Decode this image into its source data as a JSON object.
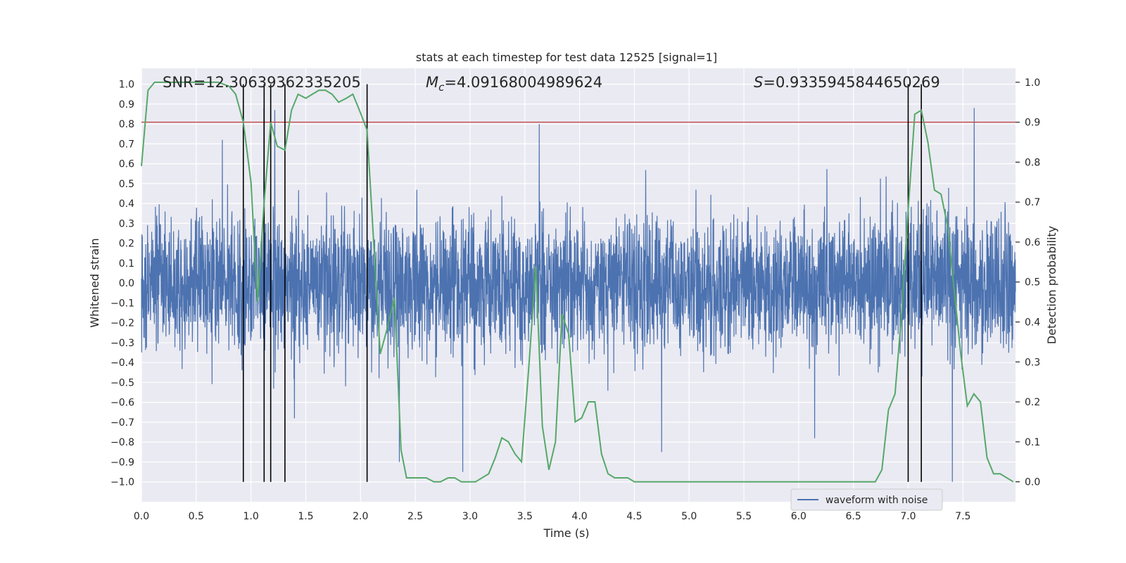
{
  "chart_data": {
    "type": "line",
    "title": "stats at each timestep for test data 12525 [signal=1]",
    "xlabel": "Time (s)",
    "ylabel_left": "Whitened strain",
    "ylabel_right": "Detection probability",
    "xlim": [
      0,
      7.98
    ],
    "ylim_left": [
      -1.1,
      1.08
    ],
    "ylim_right": [
      -0.05,
      1.035
    ],
    "x_ticks": [
      0.0,
      0.5,
      1.0,
      1.5,
      2.0,
      2.5,
      3.0,
      3.5,
      4.0,
      4.5,
      5.0,
      5.5,
      6.0,
      6.5,
      7.0,
      7.5
    ],
    "x_tick_labels": [
      "0.0",
      "0.5",
      "1.0",
      "1.5",
      "2.0",
      "2.5",
      "3.0",
      "3.5",
      "4.0",
      "4.5",
      "5.0",
      "5.5",
      "6.0",
      "6.5",
      "7.0",
      "7.5"
    ],
    "y_left_ticks": [
      1.0,
      0.9,
      0.8,
      0.7,
      0.6,
      0.5,
      0.4,
      0.3,
      0.2,
      0.1,
      0.0,
      -0.1,
      -0.2,
      -0.3,
      -0.4,
      -0.5,
      -0.6,
      -0.7,
      -0.8,
      -0.9,
      -1.0
    ],
    "y_left_tick_labels": [
      "1.0",
      "0.9",
      "0.8",
      "0.7",
      "0.6",
      "0.5",
      "0.4",
      "0.3",
      "0.2",
      "0.1",
      "0.0",
      "−0.1",
      "−0.2",
      "−0.3",
      "−0.4",
      "−0.5",
      "−0.6",
      "−0.7",
      "−0.8",
      "−0.9",
      "−1.0"
    ],
    "y_right_ticks": [
      1.0,
      0.9,
      0.8,
      0.7,
      0.6,
      0.5,
      0.4,
      0.3,
      0.2,
      0.1,
      0.0
    ],
    "y_right_tick_labels": [
      "1.0",
      "0.9",
      "0.8",
      "0.7",
      "0.6",
      "0.5",
      "0.4",
      "0.3",
      "0.2",
      "0.1",
      "0.0"
    ],
    "grid": true,
    "annotations": {
      "snr": "SNR=12.30639362335205",
      "mc_symbol": "M",
      "mc_sub": "c",
      "mc_value": "=4.09168004989624",
      "s_symbol": "S",
      "s_value": "=0.9335945844650269"
    },
    "threshold_line": {
      "y_right": 0.9,
      "color": "#c44e52"
    },
    "vertical_lines_x": [
      0.93,
      1.12,
      1.18,
      1.31,
      2.06,
      7.0,
      7.12
    ],
    "legend": {
      "placement": "lower-right",
      "label": "waveform with noise"
    },
    "series": [
      {
        "name": "waveform with noise",
        "axis": "left",
        "color": "#4c72b0",
        "style": "dense-noise",
        "x_range": [
          0,
          7.98
        ],
        "sample_count": 4000,
        "approx_envelope": [
          -0.4,
          0.4
        ],
        "approx_peak_range": [
          -1.0,
          0.98
        ]
      },
      {
        "axis": "right",
        "color": "#55a868",
        "x": [
          0.0,
          0.06,
          0.12,
          0.2,
          0.3,
          0.4,
          0.5,
          0.6,
          0.7,
          0.8,
          0.86,
          0.93,
          1.0,
          1.06,
          1.12,
          1.18,
          1.24,
          1.31,
          1.37,
          1.43,
          1.5,
          1.56,
          1.62,
          1.68,
          1.74,
          1.8,
          1.87,
          1.93,
          1.99,
          2.06,
          2.12,
          2.18,
          2.24,
          2.31,
          2.37,
          2.42,
          2.48,
          2.55,
          2.6,
          2.67,
          2.73,
          2.8,
          2.86,
          2.92,
          2.98,
          3.05,
          3.11,
          3.17,
          3.23,
          3.29,
          3.35,
          3.41,
          3.47,
          3.54,
          3.6,
          3.66,
          3.72,
          3.78,
          3.84,
          3.9,
          3.96,
          4.02,
          4.08,
          4.14,
          4.2,
          4.26,
          4.32,
          4.38,
          4.44,
          4.5,
          4.6,
          4.8,
          5.0,
          5.2,
          5.4,
          5.6,
          5.8,
          6.0,
          6.2,
          6.4,
          6.6,
          6.7,
          6.76,
          6.82,
          6.88,
          6.94,
          7.0,
          7.06,
          7.12,
          7.18,
          7.24,
          7.3,
          7.36,
          7.42,
          7.48,
          7.54,
          7.6,
          7.66,
          7.72,
          7.78,
          7.84,
          7.9,
          7.96
        ],
        "y": [
          0.79,
          0.98,
          1.0,
          1.0,
          1.0,
          1.0,
          1.0,
          1.0,
          1.0,
          0.99,
          0.97,
          0.9,
          0.75,
          0.45,
          0.7,
          0.9,
          0.84,
          0.83,
          0.93,
          0.97,
          0.96,
          0.97,
          0.98,
          0.98,
          0.97,
          0.95,
          0.96,
          0.97,
          0.93,
          0.88,
          0.6,
          0.32,
          0.38,
          0.46,
          0.08,
          0.01,
          0.01,
          0.01,
          0.01,
          0.0,
          0.0,
          0.01,
          0.01,
          0.0,
          0.0,
          0.0,
          0.01,
          0.02,
          0.06,
          0.11,
          0.1,
          0.07,
          0.05,
          0.3,
          0.54,
          0.14,
          0.03,
          0.1,
          0.42,
          0.37,
          0.15,
          0.16,
          0.2,
          0.2,
          0.07,
          0.02,
          0.01,
          0.01,
          0.01,
          0.0,
          0.0,
          0.0,
          0.0,
          0.0,
          0.0,
          0.0,
          0.0,
          0.0,
          0.0,
          0.0,
          0.0,
          0.0,
          0.03,
          0.18,
          0.22,
          0.42,
          0.68,
          0.92,
          0.93,
          0.85,
          0.73,
          0.72,
          0.64,
          0.48,
          0.32,
          0.19,
          0.22,
          0.2,
          0.06,
          0.02,
          0.02,
          0.01,
          0.0
        ]
      }
    ]
  }
}
